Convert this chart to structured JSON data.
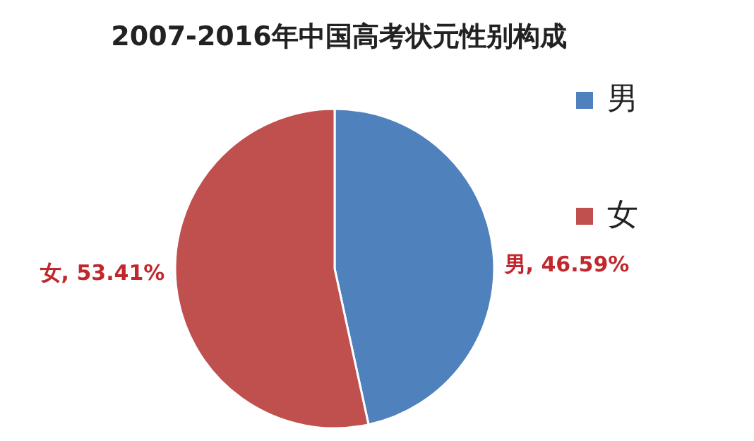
{
  "chart_data": {
    "type": "pie",
    "title": "2007-2016年中国高考状元性别构成",
    "categories": [
      "男",
      "女"
    ],
    "values": [
      46.59,
      53.41
    ],
    "colors": [
      "#4f81bd",
      "#c0504d"
    ],
    "value_labels": [
      "男, 46.59%",
      "女, 53.41%"
    ],
    "legend": "right"
  }
}
